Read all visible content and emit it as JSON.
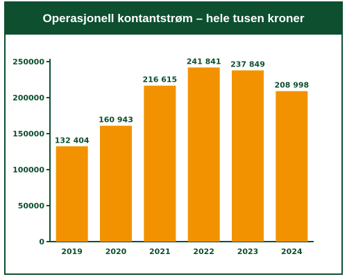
{
  "chart_data": {
    "type": "bar",
    "title": "Operasjonell kontantstrøm – hele tusen kroner",
    "categories": [
      "2019",
      "2020",
      "2021",
      "2022",
      "2023",
      "2024"
    ],
    "values": [
      132404,
      160943,
      216615,
      241841,
      237849,
      208998
    ],
    "value_labels": [
      "132 404",
      "160 943",
      "216 615",
      "241 841",
      "237 849",
      "208 998"
    ],
    "y_ticks": [
      "0",
      "50000",
      "100000",
      "150000",
      "200000",
      "250000"
    ],
    "ylim": [
      0,
      250000
    ],
    "grid": false,
    "legend": "none",
    "colors": {
      "bar": "#f39200",
      "axis": "#0d4f2f",
      "title_bg": "#0d4f2f",
      "title_text": "#ffffff"
    }
  }
}
